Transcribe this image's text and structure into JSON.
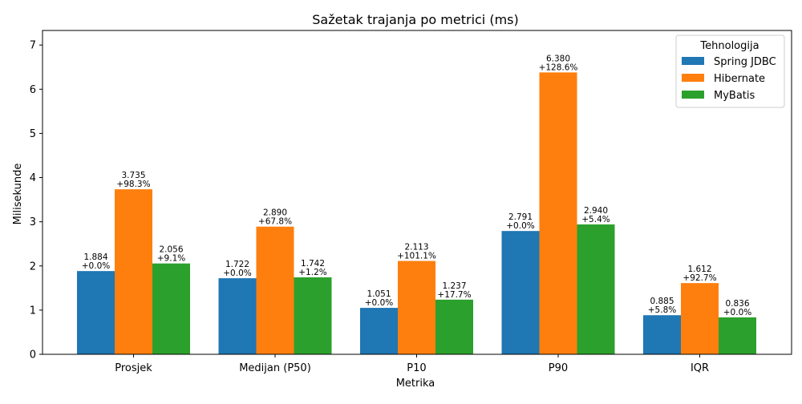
{
  "chart_data": {
    "type": "bar",
    "title": "Sažetak trajanja po metrici (ms)",
    "xlabel": "Metrika",
    "ylabel": "Milisekunde",
    "categories": [
      "Prosjek",
      "Medijan (P50)",
      "P10",
      "P90",
      "IQR"
    ],
    "ylim": [
      0,
      7.33
    ],
    "yticks": [
      "0",
      "1",
      "2",
      "3",
      "4",
      "5",
      "6",
      "7"
    ],
    "grid": false,
    "legend": {
      "title": "Tehnologija",
      "placement": "top-right"
    },
    "series": [
      {
        "name": "Spring JDBC",
        "color": "#1f77b4",
        "values": [
          1.884,
          1.722,
          1.051,
          2.791,
          0.885
        ],
        "labels": [
          "1.884",
          "1.722",
          "1.051",
          "2.791",
          "0.885"
        ],
        "deltas": [
          "+0.0%",
          "+0.0%",
          "+0.0%",
          "+0.0%",
          "+5.8%"
        ]
      },
      {
        "name": "Hibernate",
        "color": "#ff7f0e",
        "values": [
          3.735,
          2.89,
          2.113,
          6.38,
          1.612
        ],
        "labels": [
          "3.735",
          "2.890",
          "2.113",
          "6.380",
          "1.612"
        ],
        "deltas": [
          "+98.3%",
          "+67.8%",
          "+101.1%",
          "+128.6%",
          "+92.7%"
        ]
      },
      {
        "name": "MyBatis",
        "color": "#2ca02c",
        "values": [
          2.056,
          1.742,
          1.237,
          2.94,
          0.836
        ],
        "labels": [
          "2.056",
          "1.742",
          "1.237",
          "2.940",
          "0.836"
        ],
        "deltas": [
          "+9.1%",
          "+1.2%",
          "+17.7%",
          "+5.4%",
          "+0.0%"
        ]
      }
    ]
  }
}
